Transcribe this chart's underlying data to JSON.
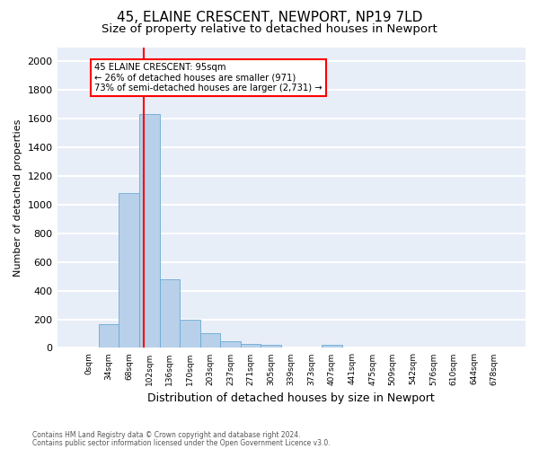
{
  "title_line1": "45, ELAINE CRESCENT, NEWPORT, NP19 7LD",
  "title_line2": "Size of property relative to detached houses in Newport",
  "xlabel": "Distribution of detached houses by size in Newport",
  "ylabel": "Number of detached properties",
  "footnote1": "Contains HM Land Registry data © Crown copyright and database right 2024.",
  "footnote2": "Contains public sector information licensed under the Open Government Licence v3.0.",
  "bar_labels": [
    "0sqm",
    "34sqm",
    "68sqm",
    "102sqm",
    "136sqm",
    "170sqm",
    "203sqm",
    "237sqm",
    "271sqm",
    "305sqm",
    "339sqm",
    "373sqm",
    "407sqm",
    "441sqm",
    "475sqm",
    "509sqm",
    "542sqm",
    "576sqm",
    "610sqm",
    "644sqm",
    "678sqm"
  ],
  "bar_values": [
    0,
    165,
    1080,
    1630,
    480,
    200,
    100,
    45,
    25,
    20,
    0,
    0,
    20,
    0,
    0,
    0,
    0,
    0,
    0,
    0,
    0
  ],
  "bar_color": "#b8d0ea",
  "bar_edge_color": "#6aaad4",
  "vline_x": 2.74,
  "vline_color": "red",
  "annotation_text": "45 ELAINE CRESCENT: 95sqm\n← 26% of detached houses are smaller (971)\n73% of semi-detached houses are larger (2,731) →",
  "annotation_box_color": "red",
  "annotation_box_facecolor": "white",
  "ylim": [
    0,
    2100
  ],
  "yticks": [
    0,
    200,
    400,
    600,
    800,
    1000,
    1200,
    1400,
    1600,
    1800,
    2000
  ],
  "background_color": "#e8eef8",
  "grid_color": "white",
  "title_fontsize": 11,
  "subtitle_fontsize": 9.5,
  "ylabel_fontsize": 8,
  "xlabel_fontsize": 9,
  "footnote_fontsize": 5.5,
  "tick_fontsize": 6.5,
  "annot_fontsize": 7.2
}
